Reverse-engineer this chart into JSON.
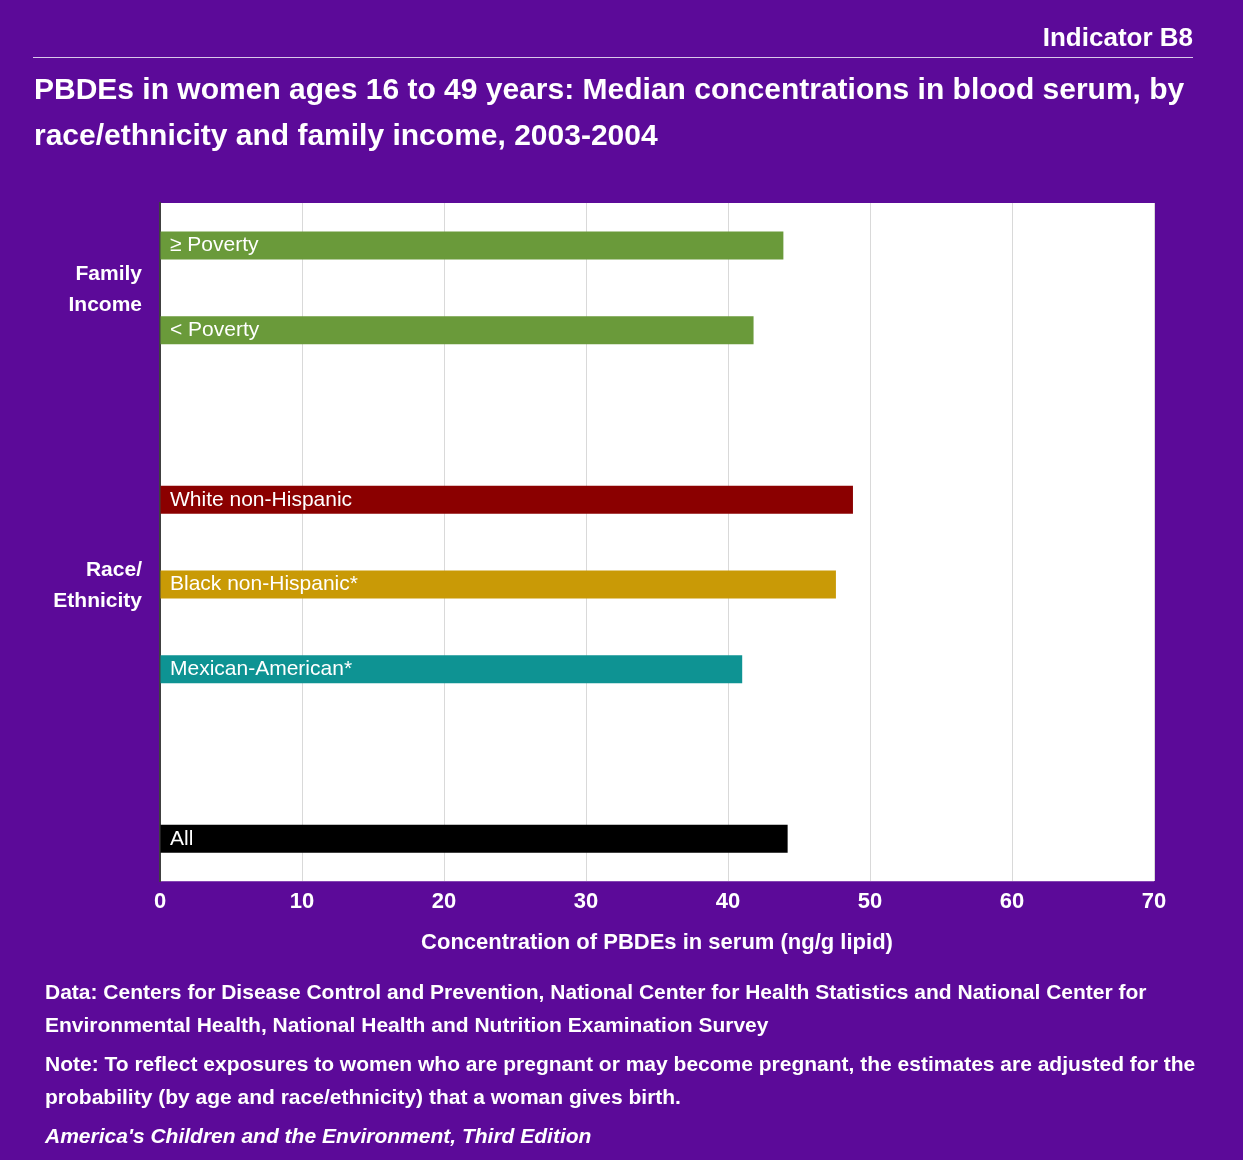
{
  "chart_data": {
    "type": "bar",
    "orientation": "horizontal",
    "title": "PBDEs in women ages 16 to 49 years: Median concentrations in blood serum, by race/ethnicity and family income, 2003-2004",
    "xlabel": "Concentration of PBDEs in serum (ng/g lipid)",
    "categories": [
      "≥ Poverty",
      "< Poverty",
      null,
      "White non-Hispanic",
      "Black non-Hispanic*",
      "Mexican-American*",
      null,
      "All"
    ],
    "values": [
      43.9,
      41.8,
      null,
      48.8,
      47.6,
      41.0,
      null,
      44.2
    ],
    "colors": [
      "#6a9a3a",
      "#6a9a3a",
      "#6a9a3a",
      "#8b0000",
      "#c99a06",
      "#0e9393",
      "#000000",
      "#000000"
    ],
    "xlim": [
      0,
      70
    ],
    "xticks": [
      0,
      10,
      20,
      30,
      40,
      50,
      60,
      70
    ],
    "grid": "x",
    "legend": false,
    "annotations": [
      "Indicator B8",
      "Family Income",
      "Race/ Ethnicity",
      "Data: Centers for Disease Control and Prevention, National Center for Health Statistics and National Center for Environmental Health, National Health and Nutrition Examination Survey",
      "Note: To reflect exposures to women who are pregnant or may become pregnant, the estimates are adjusted for the probability (by age and race/ethnicity) that a woman gives birth.",
      "America's Children and the Environment, Third Edition"
    ]
  }
}
